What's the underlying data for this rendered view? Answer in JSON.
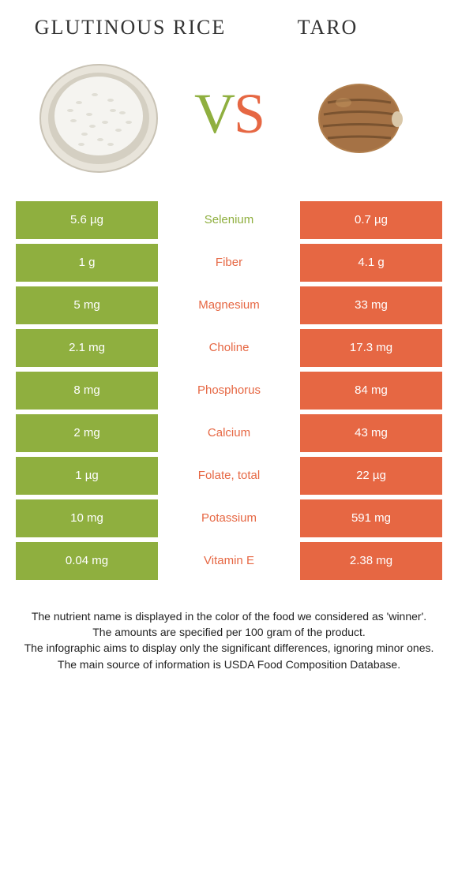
{
  "header": {
    "left_title": "GLUTINOUS RICE",
    "right_title": "TARO",
    "vs_v": "V",
    "vs_s": "S"
  },
  "colors": {
    "left": "#8faf3f",
    "right": "#e66743",
    "row_gap_bg": "#ffffff"
  },
  "table": {
    "rows": [
      {
        "left": "5.6 µg",
        "label": "Selenium",
        "right": "0.7 µg",
        "winner": "left"
      },
      {
        "left": "1 g",
        "label": "Fiber",
        "right": "4.1 g",
        "winner": "right"
      },
      {
        "left": "5 mg",
        "label": "Magnesium",
        "right": "33 mg",
        "winner": "right"
      },
      {
        "left": "2.1 mg",
        "label": "Choline",
        "right": "17.3 mg",
        "winner": "right"
      },
      {
        "left": "8 mg",
        "label": "Phosphorus",
        "right": "84 mg",
        "winner": "right"
      },
      {
        "left": "2 mg",
        "label": "Calcium",
        "right": "43 mg",
        "winner": "right"
      },
      {
        "left": "1 µg",
        "label": "Folate, total",
        "right": "22 µg",
        "winner": "right"
      },
      {
        "left": "10 mg",
        "label": "Potassium",
        "right": "591 mg",
        "winner": "right"
      },
      {
        "left": "0.04 mg",
        "label": "Vitamin E",
        "right": "2.38 mg",
        "winner": "right"
      }
    ]
  },
  "footnotes": [
    "The nutrient name is displayed in the color of the food we considered as 'winner'.",
    "The amounts are specified per 100 gram of the product.",
    "The infographic aims to display only the significant differences, ignoring minor ones.",
    "The main source of information is USDA Food Composition Database."
  ]
}
